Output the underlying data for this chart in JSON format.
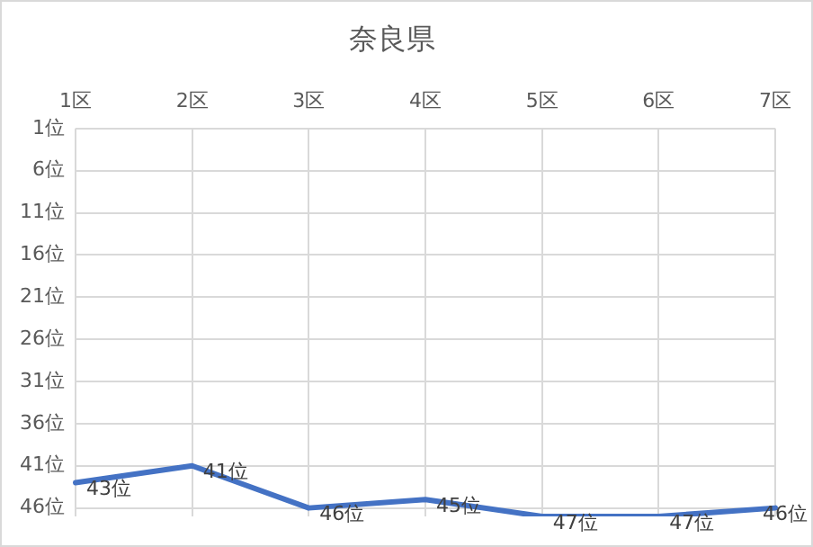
{
  "chart_data": {
    "type": "line",
    "title": "奈良県",
    "categories": [
      "1区",
      "2区",
      "3区",
      "4区",
      "5区",
      "6区",
      "7区"
    ],
    "series": [
      {
        "color": "#4472c4",
        "values": [
          43,
          41,
          46,
          45,
          47,
          47,
          46
        ],
        "value_labels": [
          "43位",
          "41位",
          "46位",
          "45位",
          "47位",
          "47位",
          "46位"
        ]
      }
    ],
    "ylim": [
      47,
      1
    ],
    "yticks": [
      {
        "value": 1,
        "label": "1位"
      },
      {
        "value": 6,
        "label": "6位"
      },
      {
        "value": 11,
        "label": "11位"
      },
      {
        "value": 16,
        "label": "16位"
      },
      {
        "value": 21,
        "label": "21位"
      },
      {
        "value": 26,
        "label": "26位"
      },
      {
        "value": 31,
        "label": "31位"
      },
      {
        "value": 36,
        "label": "36位"
      },
      {
        "value": 41,
        "label": "41位"
      },
      {
        "value": 46,
        "label": "46位"
      }
    ],
    "grid": true,
    "legend": false,
    "marker": "none",
    "line_style": "solid"
  }
}
